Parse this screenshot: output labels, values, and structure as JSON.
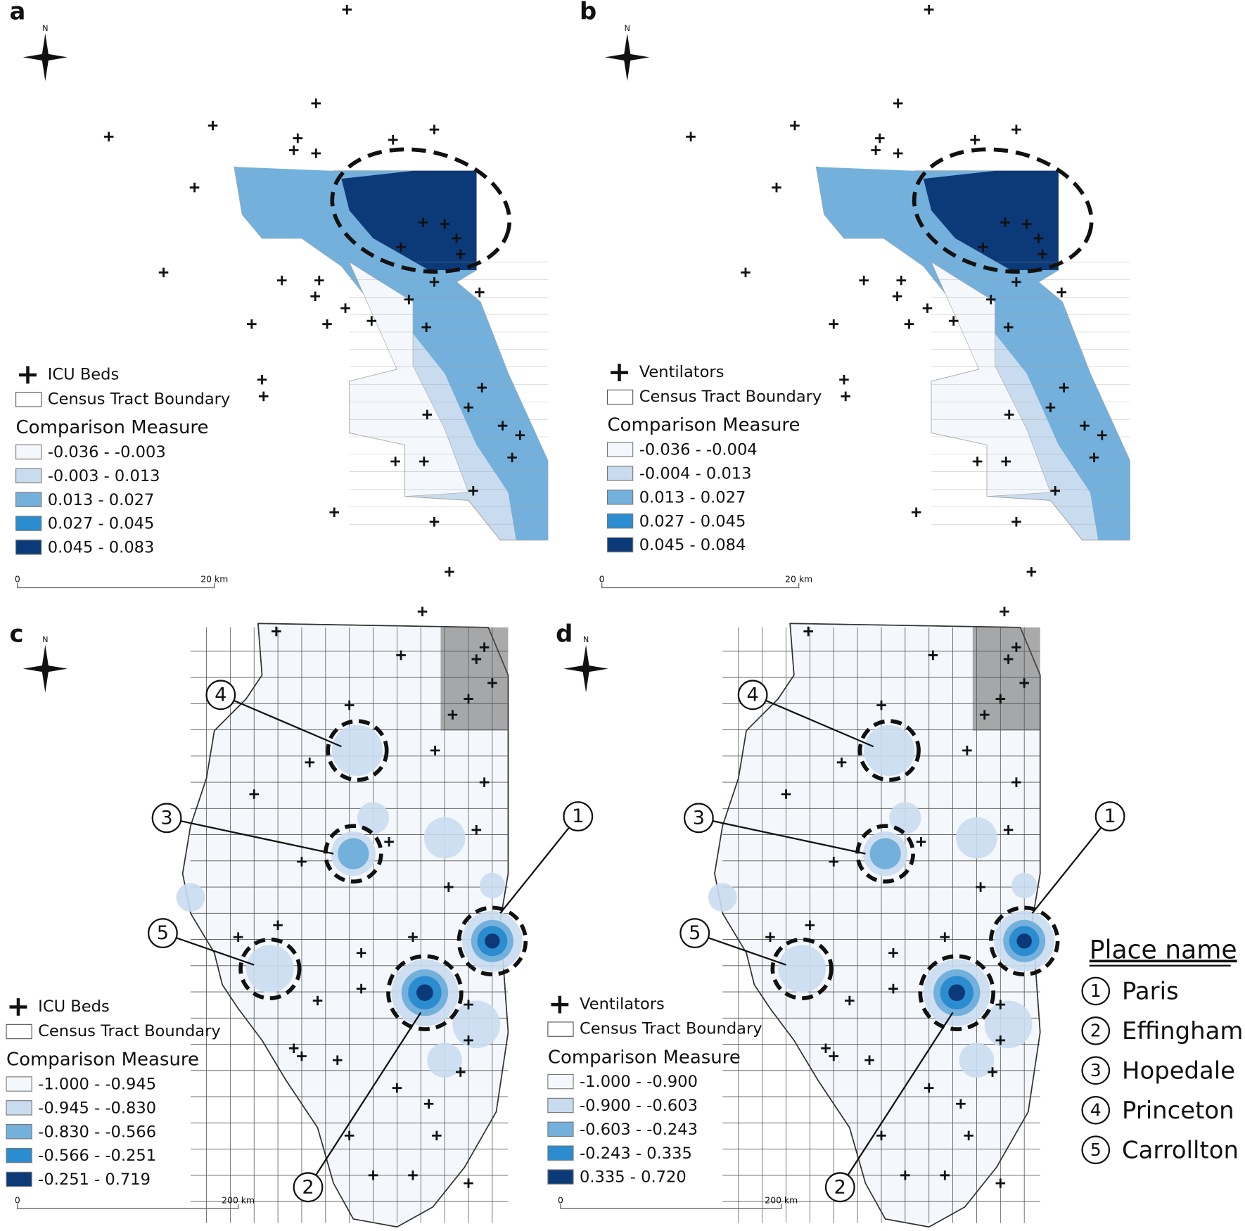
{
  "panels": [
    {
      "label": "a",
      "north": "N",
      "legend": {
        "point": "ICU Beds",
        "boundary": "Census Tract Boundary",
        "title": "Comparison Measure",
        "classes": [
          {
            "range": "-0.036 - -0.003",
            "color": "#f4f8fc"
          },
          {
            "range": "-0.003 - 0.013",
            "color": "#c9dcef"
          },
          {
            "range": "0.013 - 0.027",
            "color": "#74b0dc"
          },
          {
            "range": "0.027 - 0.045",
            "color": "#2b8cd0"
          },
          {
            "range": "0.045 - 0.083",
            "color": "#0c3a78"
          }
        ]
      },
      "scale": {
        "start": "0",
        "end": "20 km"
      }
    },
    {
      "label": "b",
      "north": "N",
      "legend": {
        "point": "Ventilators",
        "boundary": "Census Tract Boundary",
        "title": "Comparison Measure",
        "classes": [
          {
            "range": "-0.036 - -0.004",
            "color": "#f4f8fc"
          },
          {
            "range": "-0.004 - 0.013",
            "color": "#c9dcef"
          },
          {
            "range": "0.013 - 0.027",
            "color": "#74b0dc"
          },
          {
            "range": "0.027 - 0.045",
            "color": "#2b8cd0"
          },
          {
            "range": "0.045 - 0.084",
            "color": "#0c3a78"
          }
        ]
      },
      "scale": {
        "start": "0",
        "end": "20 km"
      }
    },
    {
      "label": "c",
      "north": "N",
      "legend": {
        "point": "ICU Beds",
        "boundary": "Census Tract Boundary",
        "title": "Comparison Measure",
        "classes": [
          {
            "range": "-1.000 - -0.945",
            "color": "#f4f8fc"
          },
          {
            "range": "-0.945 - -0.830",
            "color": "#c9dcef"
          },
          {
            "range": "-0.830 - -0.566",
            "color": "#74b0dc"
          },
          {
            "range": "-0.566 - -0.251",
            "color": "#2b8cd0"
          },
          {
            "range": "-0.251 - 0.719",
            "color": "#0c3a78"
          }
        ]
      },
      "scale": {
        "start": "0",
        "end": "200 km"
      },
      "callouts": [
        "1",
        "2",
        "3",
        "4",
        "5"
      ]
    },
    {
      "label": "d",
      "north": "N",
      "legend": {
        "point": "Ventilators",
        "boundary": "Census Tract Boundary",
        "title": "Comparison Measure",
        "classes": [
          {
            "range": "-1.000 - -0.900",
            "color": "#f4f8fc"
          },
          {
            "range": "-0.900 - -0.603",
            "color": "#c9dcef"
          },
          {
            "range": "-0.603 - -0.243",
            "color": "#74b0dc"
          },
          {
            "range": "-0.243 - 0.335",
            "color": "#2b8cd0"
          },
          {
            "range": "0.335 - 0.720",
            "color": "#0c3a78"
          }
        ]
      },
      "scale": {
        "start": "0",
        "end": "200 km"
      },
      "callouts": [
        "1",
        "2",
        "3",
        "4",
        "5"
      ]
    }
  ],
  "place_names": {
    "title": "Place name",
    "items": [
      {
        "number": "1",
        "name": "Paris"
      },
      {
        "number": "2",
        "name": "Effingham"
      },
      {
        "number": "3",
        "name": "Hopedale"
      },
      {
        "number": "4",
        "name": "Princeton"
      },
      {
        "number": "5",
        "name": "Carrollton"
      }
    ]
  }
}
